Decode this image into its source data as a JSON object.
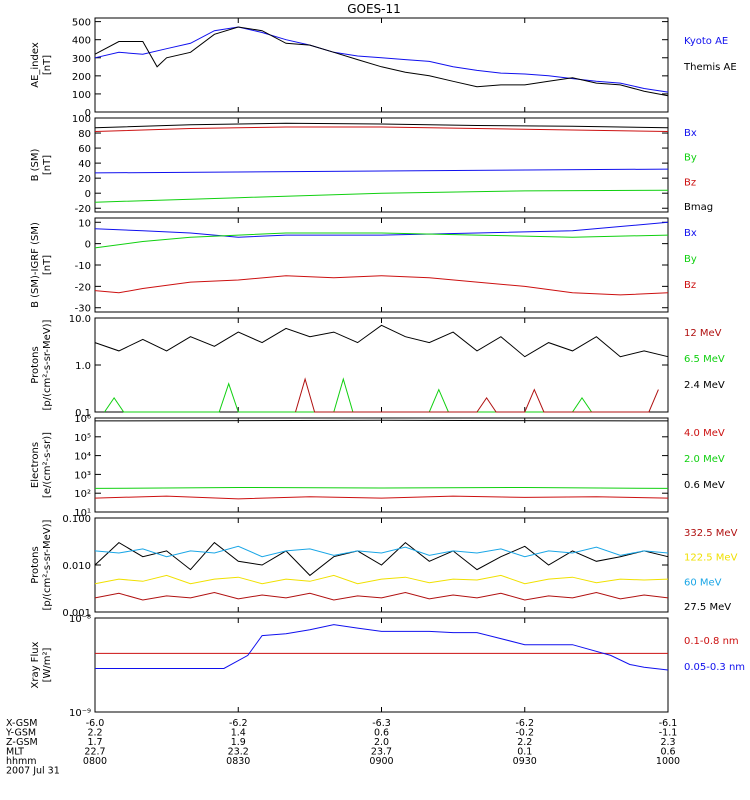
{
  "title": "GOES-11",
  "colors": {
    "black": "#000000",
    "blue": "#1010ee",
    "green": "#10d010",
    "red": "#cc1010",
    "yellow": "#f0e000",
    "cyan": "#1aa6e6",
    "darkred": "#b01010"
  },
  "chart_data": [
    {
      "type": "line",
      "ylabel_lines": [
        "AE_index",
        "[nT]"
      ],
      "ylim": [
        0,
        520
      ],
      "yscale": "linear",
      "yticks": [
        0,
        100,
        200,
        300,
        400,
        500
      ],
      "ytick_labels": [
        "0",
        "100",
        "200",
        "300",
        "400",
        "500"
      ],
      "legend": [
        {
          "label": "Kyoto AE",
          "color": "blue"
        },
        {
          "label": "Themis AE",
          "color": "black"
        }
      ],
      "series": [
        {
          "name": "Kyoto AE",
          "color": "blue",
          "x": [
            0,
            5,
            10,
            15,
            20,
            25,
            30,
            35,
            40,
            45,
            50,
            55,
            60,
            65,
            70,
            75,
            80,
            85,
            90,
            95,
            100,
            105,
            110,
            115,
            120
          ],
          "y": [
            300,
            330,
            320,
            350,
            380,
            450,
            470,
            440,
            400,
            370,
            330,
            310,
            300,
            290,
            280,
            250,
            230,
            215,
            210,
            200,
            185,
            170,
            160,
            130,
            110
          ]
        },
        {
          "name": "Themis AE",
          "color": "black",
          "x": [
            0,
            5,
            10,
            13,
            15,
            20,
            25,
            30,
            35,
            40,
            45,
            50,
            55,
            60,
            65,
            70,
            75,
            80,
            85,
            90,
            95,
            100,
            105,
            110,
            115,
            120
          ],
          "y": [
            320,
            390,
            390,
            250,
            300,
            330,
            430,
            470,
            450,
            380,
            370,
            330,
            290,
            250,
            220,
            200,
            170,
            140,
            150,
            150,
            170,
            190,
            160,
            150,
            115,
            90
          ]
        }
      ]
    },
    {
      "type": "line",
      "ylabel_lines": [
        "B (SM)",
        "[nT]"
      ],
      "ylim": [
        -25,
        100
      ],
      "yscale": "linear",
      "yticks": [
        -20,
        0,
        20,
        40,
        60,
        80,
        100
      ],
      "ytick_labels": [
        "-20",
        "0",
        "20",
        "40",
        "60",
        "80",
        "100"
      ],
      "legend": [
        {
          "label": "Bx",
          "color": "blue"
        },
        {
          "label": "By",
          "color": "green"
        },
        {
          "label": "Bz",
          "color": "red"
        },
        {
          "label": "Bmag",
          "color": "black"
        }
      ],
      "series": [
        {
          "name": "Bx",
          "color": "blue",
          "x": [
            0,
            120
          ],
          "y": [
            27,
            32
          ]
        },
        {
          "name": "By",
          "color": "green",
          "x": [
            0,
            30,
            60,
            90,
            120
          ],
          "y": [
            -12,
            -6,
            0,
            3,
            4
          ]
        },
        {
          "name": "Bz",
          "color": "red",
          "x": [
            0,
            20,
            40,
            60,
            80,
            100,
            120
          ],
          "y": [
            82,
            86,
            88,
            88,
            86,
            84,
            82
          ]
        },
        {
          "name": "Bmag",
          "color": "black",
          "x": [
            0,
            20,
            40,
            60,
            80,
            100,
            120
          ],
          "y": [
            87,
            91,
            93,
            92,
            90,
            89,
            87
          ]
        }
      ]
    },
    {
      "type": "line",
      "ylabel_lines": [
        "B (SM)-IGRF (SM)",
        "[nT]"
      ],
      "ylim": [
        -32,
        12
      ],
      "yscale": "linear",
      "yticks": [
        -30,
        -20,
        -10,
        0,
        10
      ],
      "ytick_labels": [
        "-30",
        "-20",
        "-10",
        "0",
        "10"
      ],
      "legend": [
        {
          "label": "Bx",
          "color": "blue"
        },
        {
          "label": "By",
          "color": "green"
        },
        {
          "label": "Bz",
          "color": "red"
        }
      ],
      "series": [
        {
          "name": "Bx",
          "color": "blue",
          "x": [
            0,
            10,
            20,
            30,
            40,
            60,
            80,
            100,
            110,
            120
          ],
          "y": [
            7,
            6,
            5,
            3,
            4,
            4,
            5,
            6,
            8,
            10
          ]
        },
        {
          "name": "By",
          "color": "green",
          "x": [
            0,
            10,
            20,
            30,
            40,
            60,
            80,
            100,
            120
          ],
          "y": [
            -2,
            1,
            3,
            4,
            5,
            5,
            4,
            3,
            4
          ]
        },
        {
          "name": "Bz",
          "color": "red",
          "x": [
            0,
            5,
            10,
            20,
            30,
            40,
            50,
            60,
            70,
            80,
            90,
            100,
            110,
            120
          ],
          "y": [
            -22,
            -23,
            -21,
            -18,
            -17,
            -15,
            -16,
            -15,
            -16,
            -18,
            -20,
            -23,
            -24,
            -23
          ]
        }
      ]
    },
    {
      "type": "line",
      "ylabel_lines": [
        "Protons",
        "[p/(cm²-s-sr-MeV)]"
      ],
      "ylim": [
        0.1,
        10
      ],
      "yscale": "log",
      "yticks": [
        0.1,
        1.0,
        10.0
      ],
      "ytick_labels": [
        "0.1",
        "1.0",
        "10.0"
      ],
      "legend": [
        {
          "label": "12 MeV",
          "color": "darkred"
        },
        {
          "label": "6.5 MeV",
          "color": "green"
        },
        {
          "label": "2.4 MeV",
          "color": "black"
        }
      ],
      "series": [
        {
          "name": "2.4 MeV",
          "color": "black",
          "x": [
            0,
            5,
            10,
            15,
            20,
            25,
            30,
            35,
            40,
            45,
            50,
            55,
            60,
            65,
            70,
            75,
            80,
            85,
            90,
            95,
            100,
            105,
            110,
            115,
            120
          ],
          "y": [
            3,
            2,
            3.5,
            2,
            4,
            2.5,
            5,
            3,
            6,
            4,
            5,
            3,
            7,
            4,
            3,
            5,
            2,
            4,
            1.5,
            3,
            2,
            4,
            1.5,
            2,
            1.5
          ]
        },
        {
          "name": "6.5 MeV",
          "color": "green",
          "x": [
            2,
            4,
            6,
            26,
            28,
            30,
            50,
            52,
            54,
            70,
            72,
            74,
            100,
            102,
            104
          ],
          "y": [
            0.1,
            0.2,
            0.1,
            0.1,
            0.4,
            0.1,
            0.1,
            0.5,
            0.1,
            0.1,
            0.3,
            0.1,
            0.1,
            0.2,
            0.1
          ]
        },
        {
          "name": "12 MeV",
          "color": "darkred",
          "x": [
            42,
            44,
            46,
            80,
            82,
            84,
            90,
            92,
            94,
            116,
            118
          ],
          "y": [
            0.1,
            0.5,
            0.1,
            0.1,
            0.2,
            0.1,
            0.1,
            0.3,
            0.1,
            0.1,
            0.3
          ]
        }
      ]
    },
    {
      "type": "line",
      "ylabel_lines": [
        "Electrons",
        "[e/(cm²-s-sr)]"
      ],
      "ylim": [
        10,
        1000000
      ],
      "yscale": "log",
      "yticks": [
        10,
        100,
        1000,
        10000,
        100000,
        1000000
      ],
      "ytick_labels": [
        "10¹",
        "10²",
        "10³",
        "10⁴",
        "10⁵",
        "10⁶"
      ],
      "legend": [
        {
          "label": "4.0 MeV",
          "color": "red"
        },
        {
          "label": "2.0 MeV",
          "color": "green"
        },
        {
          "label": "0.6 MeV",
          "color": "black"
        }
      ],
      "series": [
        {
          "name": "0.6 MeV",
          "color": "black",
          "x": [
            0,
            60,
            120
          ],
          "y": [
            700000,
            750000,
            700000
          ]
        },
        {
          "name": "2.0 MeV",
          "color": "green",
          "x": [
            0,
            30,
            60,
            90,
            120
          ],
          "y": [
            180,
            200,
            190,
            200,
            180
          ]
        },
        {
          "name": "4.0 MeV",
          "color": "red",
          "x": [
            0,
            15,
            30,
            45,
            60,
            75,
            90,
            105,
            120
          ],
          "y": [
            55,
            70,
            50,
            65,
            55,
            70,
            60,
            65,
            55
          ]
        }
      ]
    },
    {
      "type": "line",
      "ylabel_lines": [
        "Protons",
        "[p/(cm²-s-sr-MeV)]"
      ],
      "ylim": [
        0.001,
        0.1
      ],
      "yscale": "log",
      "yticks": [
        0.001,
        0.01,
        0.1
      ],
      "ytick_labels": [
        "0.001",
        "0.010",
        "0.100"
      ],
      "legend": [
        {
          "label": "332.5 MeV",
          "color": "darkred"
        },
        {
          "label": "122.5 MeV",
          "color": "yellow"
        },
        {
          "label": "60 MeV",
          "color": "cyan"
        },
        {
          "label": "27.5 MeV",
          "color": "black"
        }
      ],
      "series": [
        {
          "name": "27.5 MeV",
          "color": "black",
          "x": [
            0,
            5,
            10,
            15,
            20,
            25,
            30,
            35,
            40,
            45,
            50,
            55,
            60,
            65,
            70,
            75,
            80,
            85,
            90,
            95,
            100,
            105,
            110,
            115,
            120
          ],
          "y": [
            0.01,
            0.03,
            0.015,
            0.02,
            0.008,
            0.03,
            0.012,
            0.01,
            0.02,
            0.006,
            0.015,
            0.02,
            0.01,
            0.03,
            0.012,
            0.02,
            0.008,
            0.015,
            0.025,
            0.01,
            0.02,
            0.012,
            0.015,
            0.02,
            0.015
          ]
        },
        {
          "name": "60 MeV",
          "color": "cyan",
          "x": [
            0,
            5,
            10,
            15,
            20,
            25,
            30,
            35,
            40,
            45,
            50,
            55,
            60,
            65,
            70,
            75,
            80,
            85,
            90,
            95,
            100,
            105,
            110,
            115,
            120
          ],
          "y": [
            0.02,
            0.018,
            0.022,
            0.015,
            0.02,
            0.018,
            0.025,
            0.015,
            0.02,
            0.022,
            0.016,
            0.02,
            0.018,
            0.024,
            0.016,
            0.02,
            0.018,
            0.022,
            0.015,
            0.02,
            0.018,
            0.024,
            0.016,
            0.02,
            0.018
          ]
        },
        {
          "name": "122.5 MeV",
          "color": "yellow",
          "x": [
            0,
            5,
            10,
            15,
            20,
            25,
            30,
            35,
            40,
            45,
            50,
            55,
            60,
            65,
            70,
            75,
            80,
            85,
            90,
            95,
            100,
            105,
            110,
            115,
            120
          ],
          "y": [
            0.004,
            0.005,
            0.0045,
            0.006,
            0.004,
            0.005,
            0.0055,
            0.004,
            0.005,
            0.0045,
            0.006,
            0.004,
            0.005,
            0.0055,
            0.0042,
            0.005,
            0.0048,
            0.006,
            0.004,
            0.005,
            0.0055,
            0.0042,
            0.005,
            0.0048,
            0.005
          ]
        },
        {
          "name": "332.5 MeV",
          "color": "darkred",
          "x": [
            0,
            5,
            10,
            15,
            20,
            25,
            30,
            35,
            40,
            45,
            50,
            55,
            60,
            65,
            70,
            75,
            80,
            85,
            90,
            95,
            100,
            105,
            110,
            115,
            120
          ],
          "y": [
            0.002,
            0.0025,
            0.0018,
            0.0022,
            0.002,
            0.0026,
            0.0019,
            0.0023,
            0.002,
            0.0025,
            0.0018,
            0.0022,
            0.002,
            0.0026,
            0.0019,
            0.0023,
            0.002,
            0.0025,
            0.0018,
            0.0022,
            0.002,
            0.0026,
            0.0019,
            0.0023,
            0.002
          ]
        }
      ]
    },
    {
      "type": "line",
      "ylabel_lines": [
        "Xray Flux",
        "[W/m²]"
      ],
      "ylim": [
        1e-09,
        1e-08
      ],
      "yscale": "log",
      "yticks": [
        1e-09,
        1e-08
      ],
      "ytick_labels": [
        "10⁻⁹",
        "10⁻⁸"
      ],
      "legend": [
        {
          "label": "0.1-0.8 nm",
          "color": "red"
        },
        {
          "label": "0.05-0.3 nm",
          "color": "blue"
        }
      ],
      "series": [
        {
          "name": "0.1-0.8 nm",
          "color": "red",
          "x": [
            0,
            120
          ],
          "y": [
            4.2e-09,
            4.2e-09
          ]
        },
        {
          "name": "0.05-0.3 nm",
          "color": "blue",
          "x": [
            0,
            15,
            27,
            32,
            35,
            40,
            45,
            50,
            55,
            60,
            70,
            75,
            80,
            90,
            100,
            108,
            112,
            115,
            120
          ],
          "y": [
            2.9e-09,
            2.9e-09,
            2.9e-09,
            4e-09,
            6.5e-09,
            6.8e-09,
            7.5e-09,
            8.5e-09,
            7.8e-09,
            7.2e-09,
            7.2e-09,
            7e-09,
            7e-09,
            5.2e-09,
            5.2e-09,
            4e-09,
            3.2e-09,
            3e-09,
            2.8e-09
          ]
        }
      ]
    }
  ],
  "x_axis": {
    "range": [
      0,
      120
    ],
    "tick_positions": [
      0,
      30,
      60,
      90,
      120
    ],
    "row_labels": [
      "X-GSM",
      "Y-GSM",
      "Z-GSM",
      "MLT",
      "hhmm",
      "2007 Jul 31"
    ],
    "rows": [
      [
        "-6.0",
        "-6.2",
        "-6.3",
        "-6.2",
        "-6.1"
      ],
      [
        "2.2",
        "1.4",
        "0.6",
        "-0.2",
        "-1.1"
      ],
      [
        "1.7",
        "1.9",
        "2.0",
        "2.2",
        "2.3"
      ],
      [
        "22.7",
        "23.2",
        "23.7",
        "0.1",
        "0.6"
      ],
      [
        "0800",
        "0830",
        "0900",
        "0930",
        "1000"
      ]
    ]
  }
}
